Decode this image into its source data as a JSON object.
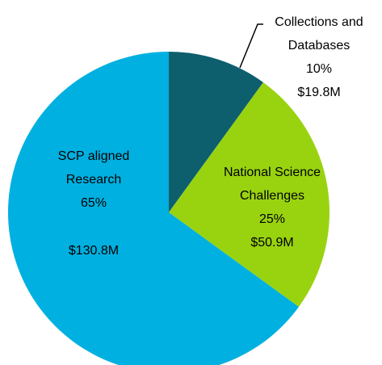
{
  "chart_data": {
    "type": "pie",
    "categories": [
      "Collections and Databases",
      "National Science Challenges",
      "SCP aligned Research"
    ],
    "values": [
      10,
      25,
      65
    ],
    "value_labels": [
      "10%",
      "25%",
      "65%"
    ],
    "amount_labels": [
      "$19.8M",
      "$50.9M",
      "$130.8M"
    ],
    "colors": [
      "#0e5f6e",
      "#99d310",
      "#00b0e0"
    ]
  }
}
